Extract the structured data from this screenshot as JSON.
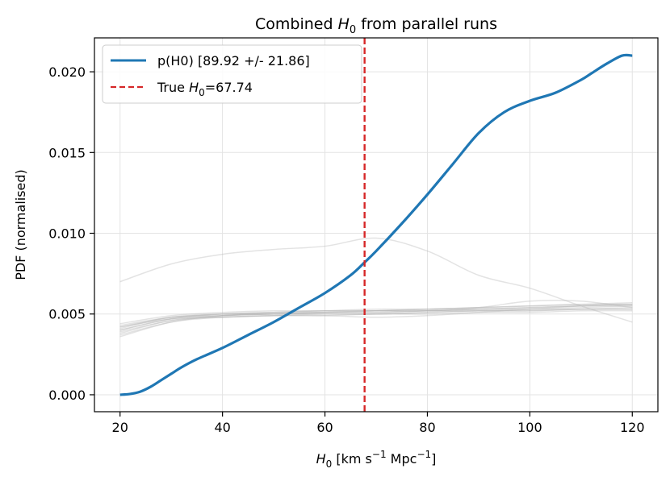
{
  "chart_data": {
    "type": "line",
    "title": {
      "prefix": "Combined ",
      "symbol": "H",
      "sub": "0",
      "suffix": " from parallel runs"
    },
    "xlabel": {
      "symbol": "H",
      "sub": "0",
      "unit_a": " [km s",
      "sup_a": "−1",
      "unit_b": " Mpc",
      "sup_b": "−1",
      "unit_c": "]"
    },
    "ylabel": "PDF (normalised)",
    "xlim": [
      15,
      125
    ],
    "ylim": [
      -0.00105,
      0.0221
    ],
    "xticks": [
      20,
      40,
      60,
      80,
      100,
      120
    ],
    "xtick_labels": [
      "20",
      "40",
      "60",
      "80",
      "100",
      "120"
    ],
    "yticks": [
      0.0,
      0.005,
      0.01,
      0.015,
      0.02
    ],
    "ytick_labels": [
      "0.000",
      "0.005",
      "0.010",
      "0.015",
      "0.020"
    ],
    "grid": true,
    "legend_position": "top-left",
    "series": [
      {
        "name": "p(H0) [89.92 +/- 21.86]",
        "color": "#1f77b4",
        "style": "solid",
        "x": [
          20,
          22,
          24,
          26,
          28,
          30,
          32,
          35,
          40,
          45,
          50,
          55,
          60,
          65,
          67.74,
          70,
          75,
          80,
          85,
          90,
          95,
          100,
          105,
          110,
          112,
          115,
          118,
          120
        ],
        "y": [
          0.0,
          5e-05,
          0.0002,
          0.0005,
          0.0009,
          0.0013,
          0.0017,
          0.0022,
          0.0029,
          0.0037,
          0.0045,
          0.0054,
          0.0063,
          0.0074,
          0.0082,
          0.0089,
          0.0106,
          0.0124,
          0.0143,
          0.0162,
          0.0175,
          0.0182,
          0.0187,
          0.0195,
          0.0199,
          0.0205,
          0.021,
          0.021
        ]
      }
    ],
    "vline": {
      "name": "True H0=67.74",
      "legend_prefix": "True ",
      "legend_symbol": "H",
      "legend_sub": "0",
      "legend_suffix": "=67.74",
      "x": 67.74,
      "color": "#d62728",
      "style": "dashed"
    },
    "background_runs": {
      "color": "#b0b0b0",
      "x": [
        20,
        30,
        40,
        50,
        60,
        70,
        80,
        90,
        100,
        110,
        120
      ],
      "runs": [
        [
          0.007,
          0.0081,
          0.0087,
          0.009,
          0.0092,
          0.0097,
          0.0089,
          0.0074,
          0.0066,
          0.0055,
          0.0045
        ],
        [
          0.0036,
          0.0045,
          0.0049,
          0.005,
          0.0051,
          0.0052,
          0.0053,
          0.0054,
          0.0055,
          0.0056,
          0.0057
        ],
        [
          0.0038,
          0.0046,
          0.0048,
          0.0049,
          0.005,
          0.005,
          0.0051,
          0.0052,
          0.0053,
          0.0054,
          0.0055
        ],
        [
          0.004,
          0.0047,
          0.005,
          0.0051,
          0.0051,
          0.0051,
          0.0052,
          0.0053,
          0.0054,
          0.0055,
          0.0056
        ],
        [
          0.0041,
          0.0048,
          0.0049,
          0.005,
          0.005,
          0.005,
          0.0051,
          0.0052,
          0.0052,
          0.0053,
          0.0054
        ],
        [
          0.0042,
          0.0047,
          0.0048,
          0.0049,
          0.0049,
          0.005,
          0.005,
          0.0051,
          0.0051,
          0.0052,
          0.0052
        ],
        [
          0.0043,
          0.0048,
          0.005,
          0.0051,
          0.0052,
          0.0052,
          0.0052,
          0.0053,
          0.0053,
          0.0053,
          0.0053
        ],
        [
          0.0039,
          0.0046,
          0.0049,
          0.0051,
          0.0052,
          0.0053,
          0.0053,
          0.0054,
          0.0055,
          0.0056,
          0.0056
        ],
        [
          0.0044,
          0.0049,
          0.0051,
          0.0052,
          0.0052,
          0.0052,
          0.0052,
          0.0052,
          0.0052,
          0.0053,
          0.0053
        ],
        [
          0.0037,
          0.0045,
          0.0048,
          0.0049,
          0.0049,
          0.0048,
          0.0049,
          0.0051,
          0.0053,
          0.0055,
          0.0056
        ],
        [
          0.0042,
          0.0048,
          0.005,
          0.005,
          0.0051,
          0.0052,
          0.0053,
          0.0054,
          0.0058,
          0.0058,
          0.0054
        ],
        [
          0.004,
          0.0047,
          0.0049,
          0.005,
          0.0051,
          0.0051,
          0.0052,
          0.0053,
          0.0054,
          0.0055,
          0.0055
        ]
      ]
    }
  }
}
